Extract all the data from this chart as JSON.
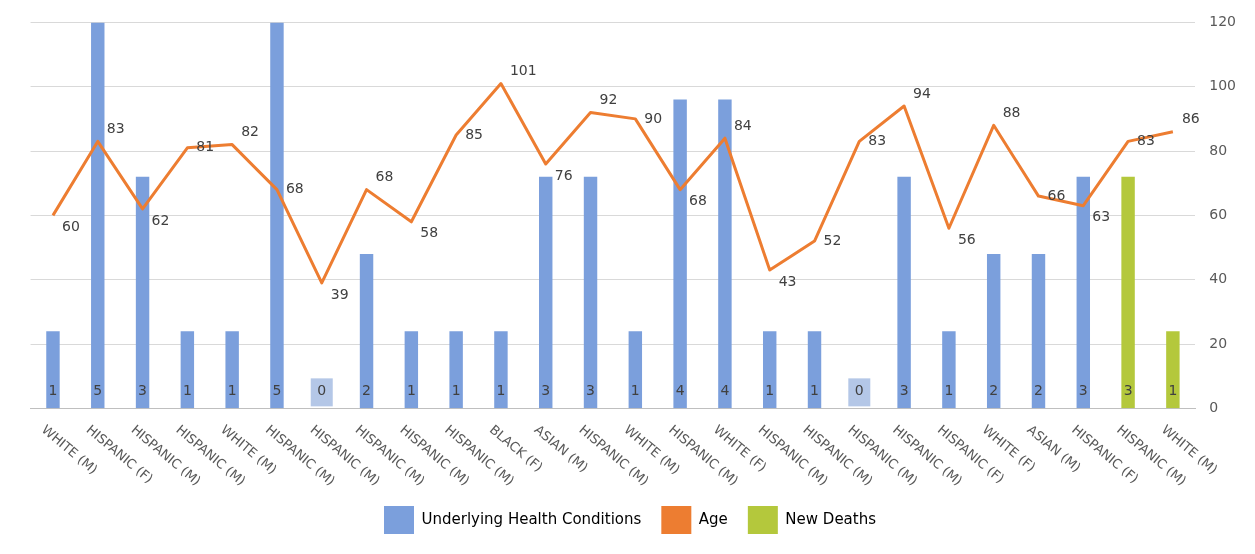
{
  "chart_data": {
    "type": "bar",
    "categories": [
      "WHITE (M)",
      "HISPANIC (F)",
      "HISPANIC (M)",
      "HISPANIC (M)",
      "WHITE (M)",
      "HISPANIC (M)",
      "HISPANIC (M)",
      "HISPANIC (M)",
      "HISPANIC (M)",
      "HISPANIC (M)",
      "BLACK (F)",
      "ASIAN (M)",
      "HISPANIC (M)",
      "WHITE (M)",
      "HISPANIC (M)",
      "WHITE (F)",
      "HISPANIC (M)",
      "HISPANIC (M)",
      "HISPANIC (M)",
      "HISPANIC (M)",
      "HISPANIC (F)",
      "WHITE (F)",
      "ASIAN (M)",
      "HISPANIC (F)",
      "HISPANIC (M)",
      "WHITE (M)"
    ],
    "series": [
      {
        "name": "Underlying Health Conditions",
        "axis": "y2",
        "color": "#7b9fdc",
        "values": [
          1,
          5,
          3,
          1,
          1,
          5,
          0,
          2,
          1,
          1,
          1,
          3,
          3,
          1,
          4,
          4,
          1,
          1,
          0,
          3,
          1,
          2,
          2,
          3,
          null,
          null
        ]
      },
      {
        "name": "Age",
        "type": "line",
        "color": "#ed7d31",
        "values": [
          60,
          83,
          62,
          81,
          82,
          68,
          39,
          68,
          58,
          85,
          101,
          76,
          92,
          90,
          68,
          84,
          43,
          52,
          83,
          94,
          56,
          88,
          66,
          63,
          83,
          86
        ]
      },
      {
        "name": "New Deaths",
        "axis": "y2",
        "color": "#b4c83c",
        "values": [
          null,
          null,
          null,
          null,
          null,
          null,
          null,
          null,
          null,
          null,
          null,
          null,
          null,
          null,
          null,
          null,
          null,
          null,
          null,
          null,
          null,
          null,
          null,
          null,
          3,
          1
        ]
      }
    ],
    "ylim": [
      0,
      120
    ],
    "yticks": [
      0,
      20,
      40,
      60,
      80,
      100,
      120
    ],
    "grid": "y",
    "legend": "bottom",
    "data_labels": true,
    "marker": "none",
    "line_style": "solid"
  }
}
